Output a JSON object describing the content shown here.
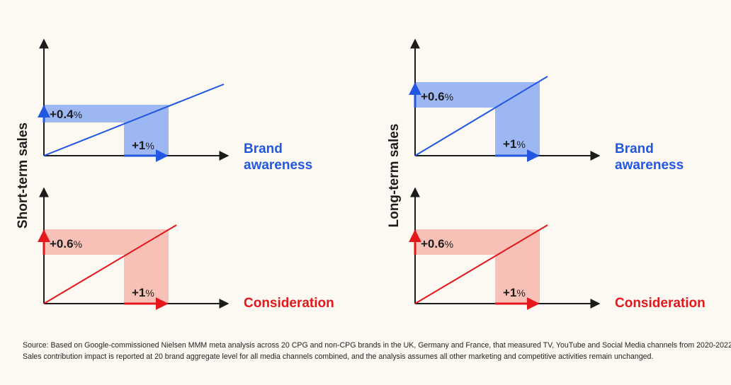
{
  "colors": {
    "blue": "#2157e3",
    "blue_fill": "#9db7f2",
    "red": "#e3171c",
    "red_fill": "#f7c1b7",
    "axis": "#1c1c1c",
    "text": "#1c1c1c"
  },
  "left": {
    "ylabel": "Short-term sales",
    "top": {
      "y_effect": "+0.4",
      "y_unit": "%",
      "x_effect": "+1",
      "x_unit": "%",
      "driver_line1": "Brand",
      "driver_line2": "awareness"
    },
    "bottom": {
      "y_effect": "+0.6",
      "y_unit": "%",
      "x_effect": "+1",
      "x_unit": "%",
      "driver": "Consideration"
    }
  },
  "right": {
    "ylabel": "Long-term sales",
    "top": {
      "y_effect": "+0.6",
      "y_unit": "%",
      "x_effect": "+1",
      "x_unit": "%",
      "driver_line1": "Brand",
      "driver_line2": "awareness"
    },
    "bottom": {
      "y_effect": "+0.6",
      "y_unit": "%",
      "x_effect": "+1",
      "x_unit": "%",
      "driver": "Consideration"
    }
  },
  "source": {
    "line1": "Source: Based on Google-commissioned Nielsen MMM meta analysis across 20 CPG and non-CPG brands in the UK, Germany and France, that measured TV, YouTube and Social Media channels from 2020-2022.",
    "line2": "Sales contribution impact is reported at 20 brand aggregate level for all media channels combined, and the analysis assumes all other marketing and competitive activities remain unchanged."
  }
}
